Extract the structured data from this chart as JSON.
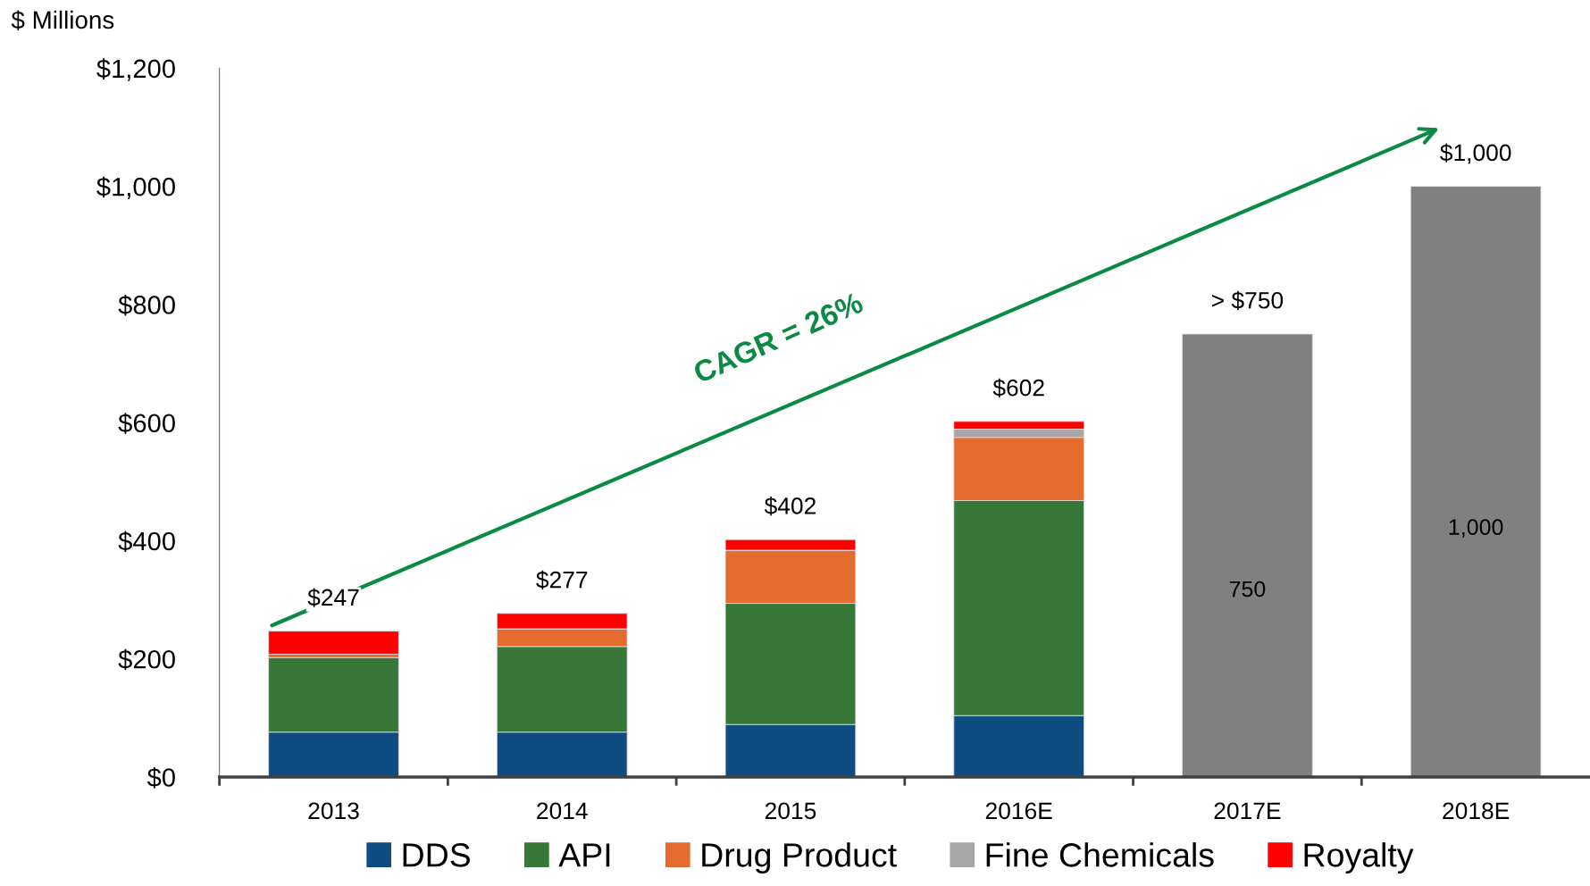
{
  "chart_data": {
    "type": "bar",
    "stacked": true,
    "ylabel": "$ Millions",
    "categories": [
      "2013",
      "2014",
      "2015",
      "2016E",
      "2017E",
      "2018E"
    ],
    "series": [
      {
        "name": "DDS",
        "color": "#0f4c81",
        "values": [
          76,
          76,
          89,
          104,
          null,
          null
        ]
      },
      {
        "name": "API",
        "color": "#377838",
        "values": [
          126,
          145,
          205,
          364,
          null,
          null
        ]
      },
      {
        "name": "Drug Product",
        "color": "#e46c2e",
        "values": [
          6,
          30,
          90,
          107,
          null,
          null
        ]
      },
      {
        "name": "Fine Chemicals",
        "color": "#a6a6a6",
        "values": [
          0,
          0,
          0,
          14,
          null,
          null
        ]
      },
      {
        "name": "Royalty",
        "color": "#ff0000",
        "values": [
          39,
          26,
          18,
          13,
          null,
          null
        ]
      },
      {
        "color": "#808080",
        "values": [
          null,
          null,
          null,
          null,
          750,
          1000
        ],
        "value_labels": [
          null,
          null,
          null,
          null,
          "750",
          "1,000"
        ]
      }
    ],
    "totals": [
      "$247",
      "$277",
      "$402",
      "$602",
      "> $750",
      "$1,000"
    ],
    "ylim": [
      0,
      1200
    ],
    "yticks": [
      {
        "value": 0,
        "label": "$0"
      },
      {
        "value": 200,
        "label": "$200"
      },
      {
        "value": 400,
        "label": "$400"
      },
      {
        "value": 600,
        "label": "$600"
      },
      {
        "value": 800,
        "label": "$800"
      },
      {
        "value": 1000,
        "label": "$1,000"
      },
      {
        "value": 1200,
        "label": "$1,200"
      }
    ],
    "annotations": [
      "CAGR = 26%"
    ],
    "grid": false,
    "legend": "bottom"
  }
}
